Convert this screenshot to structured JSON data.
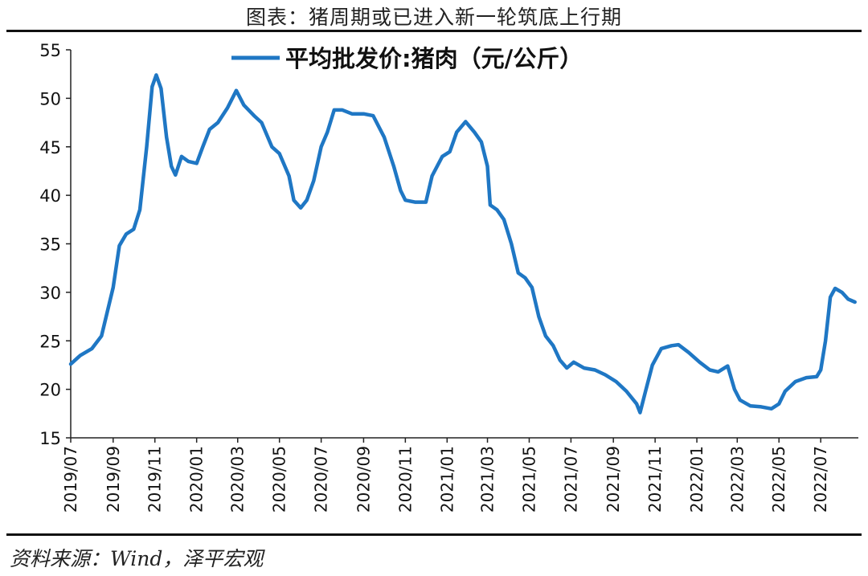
{
  "title": "图表：猪周期或已进入新一轮筑底上行期",
  "source": "资料来源：Wind，泽平宏观",
  "chart_data": {
    "type": "line",
    "legend": {
      "position": "top-center"
    },
    "series": [
      {
        "name": "平均批发价:猪肉（元/公斤）",
        "color": "#1f77c4",
        "points": [
          [
            "2019-07-01",
            22.6
          ],
          [
            "2019-07-15",
            23.5
          ],
          [
            "2019-08-01",
            24.2
          ],
          [
            "2019-08-15",
            25.5
          ],
          [
            "2019-09-01",
            30.5
          ],
          [
            "2019-09-10",
            34.8
          ],
          [
            "2019-09-20",
            36.0
          ],
          [
            "2019-10-01",
            36.5
          ],
          [
            "2019-10-10",
            38.5
          ],
          [
            "2019-10-20",
            45.0
          ],
          [
            "2019-10-28",
            51.2
          ],
          [
            "2019-11-03",
            52.4
          ],
          [
            "2019-11-10",
            51.0
          ],
          [
            "2019-11-18",
            46.0
          ],
          [
            "2019-11-25",
            43.0
          ],
          [
            "2019-12-01",
            42.1
          ],
          [
            "2019-12-10",
            44.0
          ],
          [
            "2019-12-20",
            43.5
          ],
          [
            "2020-01-01",
            43.3
          ],
          [
            "2020-01-10",
            45.0
          ],
          [
            "2020-01-20",
            46.8
          ],
          [
            "2020-02-01",
            47.5
          ],
          [
            "2020-02-15",
            49.0
          ],
          [
            "2020-02-28",
            50.8
          ],
          [
            "2020-03-10",
            49.3
          ],
          [
            "2020-03-25",
            48.2
          ],
          [
            "2020-04-05",
            47.5
          ],
          [
            "2020-04-20",
            45.0
          ],
          [
            "2020-05-01",
            44.3
          ],
          [
            "2020-05-15",
            42.0
          ],
          [
            "2020-05-22",
            39.5
          ],
          [
            "2020-06-01",
            38.7
          ],
          [
            "2020-06-10",
            39.5
          ],
          [
            "2020-06-20",
            41.5
          ],
          [
            "2020-07-01",
            45.0
          ],
          [
            "2020-07-10",
            46.5
          ],
          [
            "2020-07-20",
            48.8
          ],
          [
            "2020-08-01",
            48.8
          ],
          [
            "2020-08-15",
            48.4
          ],
          [
            "2020-09-01",
            48.4
          ],
          [
            "2020-09-15",
            48.2
          ],
          [
            "2020-10-01",
            46.0
          ],
          [
            "2020-10-15",
            43.0
          ],
          [
            "2020-10-25",
            40.5
          ],
          [
            "2020-11-01",
            39.5
          ],
          [
            "2020-11-15",
            39.3
          ],
          [
            "2020-12-01",
            39.3
          ],
          [
            "2020-12-10",
            42.0
          ],
          [
            "2020-12-25",
            44.0
          ],
          [
            "2021-01-05",
            44.5
          ],
          [
            "2021-01-15",
            46.5
          ],
          [
            "2021-01-28",
            47.6
          ],
          [
            "2021-02-10",
            46.5
          ],
          [
            "2021-02-20",
            45.5
          ],
          [
            "2021-03-01",
            43.0
          ],
          [
            "2021-03-05",
            39.0
          ],
          [
            "2021-03-15",
            38.5
          ],
          [
            "2021-03-25",
            37.5
          ],
          [
            "2021-04-05",
            35.0
          ],
          [
            "2021-04-15",
            32.0
          ],
          [
            "2021-04-25",
            31.5
          ],
          [
            "2021-05-05",
            30.5
          ],
          [
            "2021-05-15",
            27.5
          ],
          [
            "2021-05-25",
            25.5
          ],
          [
            "2021-06-05",
            24.5
          ],
          [
            "2021-06-15",
            23.0
          ],
          [
            "2021-06-25",
            22.2
          ],
          [
            "2021-07-05",
            22.8
          ],
          [
            "2021-07-20",
            22.2
          ],
          [
            "2021-08-05",
            22.0
          ],
          [
            "2021-08-20",
            21.5
          ],
          [
            "2021-09-05",
            20.8
          ],
          [
            "2021-09-20",
            19.8
          ],
          [
            "2021-10-05",
            18.5
          ],
          [
            "2021-10-10",
            17.6
          ],
          [
            "2021-10-18",
            19.8
          ],
          [
            "2021-10-28",
            22.5
          ],
          [
            "2021-11-10",
            24.2
          ],
          [
            "2021-11-25",
            24.5
          ],
          [
            "2021-12-05",
            24.6
          ],
          [
            "2021-12-20",
            23.8
          ],
          [
            "2022-01-05",
            22.8
          ],
          [
            "2022-01-20",
            22.0
          ],
          [
            "2022-02-01",
            21.8
          ],
          [
            "2022-02-15",
            22.4
          ],
          [
            "2022-02-25",
            20.0
          ],
          [
            "2022-03-05",
            18.9
          ],
          [
            "2022-03-20",
            18.3
          ],
          [
            "2022-04-05",
            18.2
          ],
          [
            "2022-04-20",
            18.0
          ],
          [
            "2022-05-01",
            18.5
          ],
          [
            "2022-05-10",
            19.8
          ],
          [
            "2022-05-25",
            20.8
          ],
          [
            "2022-06-10",
            21.2
          ],
          [
            "2022-06-25",
            21.3
          ],
          [
            "2022-07-01",
            22.0
          ],
          [
            "2022-07-08",
            25.0
          ],
          [
            "2022-07-15",
            29.5
          ],
          [
            "2022-07-22",
            30.4
          ],
          [
            "2022-08-01",
            30.0
          ],
          [
            "2022-08-10",
            29.3
          ],
          [
            "2022-08-20",
            29.0
          ]
        ]
      }
    ],
    "y_axis": {
      "min": 15,
      "max": 55,
      "ticks": [
        "15",
        "20",
        "25",
        "30",
        "35",
        "40",
        "45",
        "50",
        "55"
      ]
    },
    "x_axis": {
      "min": "2019-07-01",
      "max": "2022-08-25",
      "ticks": [
        "2019/07",
        "2019/09",
        "2019/11",
        "2020/01",
        "2020/03",
        "2020/05",
        "2020/07",
        "2020/09",
        "2020/11",
        "2021/01",
        "2021/03",
        "2021/05",
        "2021/07",
        "2021/09",
        "2021/11",
        "2022/01",
        "2022/03",
        "2022/05",
        "2022/07"
      ]
    },
    "grid": false
  }
}
